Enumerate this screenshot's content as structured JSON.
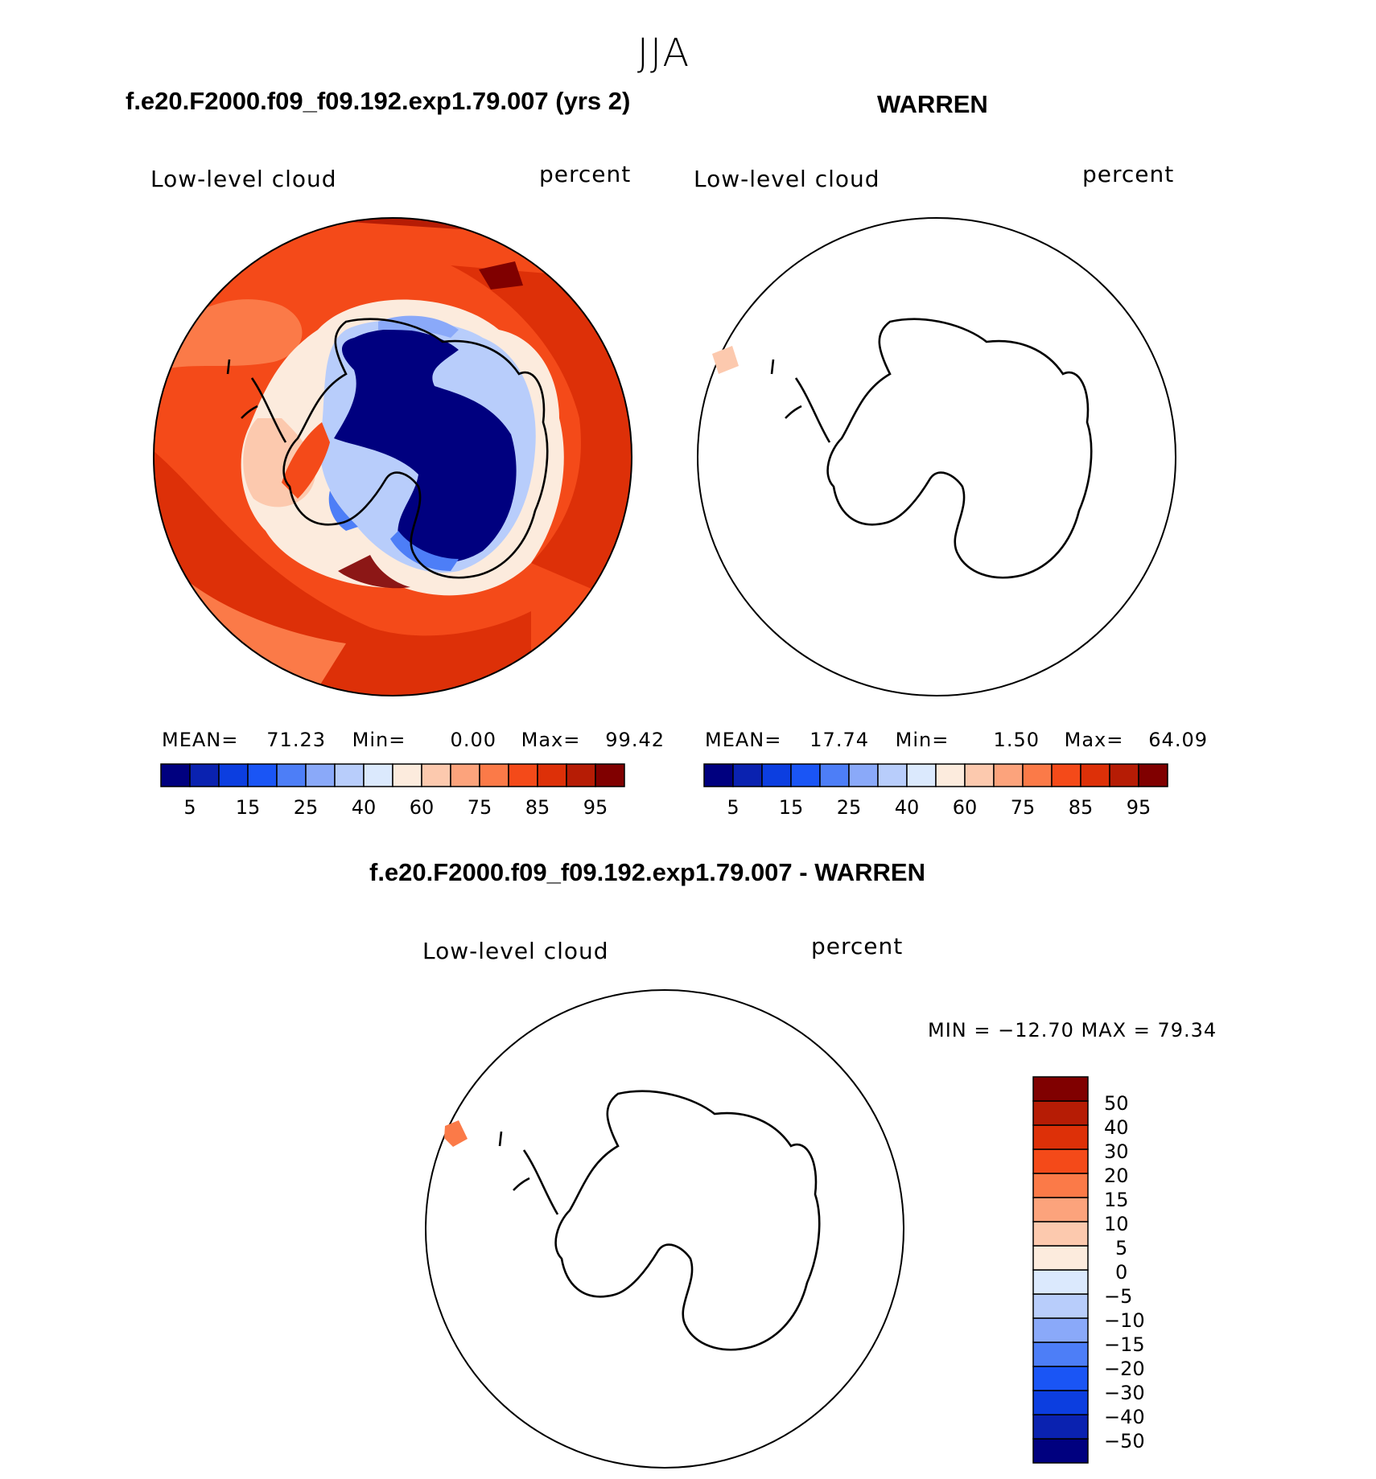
{
  "season_title": "JJA",
  "panels": {
    "model": {
      "case_title": "f.e20.F2000.f09_f09.192.exp1.79.007 (yrs 2)",
      "variable": "Low-level cloud",
      "units": "percent",
      "mean_label": "MEAN=",
      "mean": "71.23",
      "min_label": "Min=",
      "min": "0.00",
      "max_label": "Max=",
      "max": "99.42"
    },
    "obs": {
      "case_title": "WARREN",
      "variable": "Low-level cloud",
      "units": "percent",
      "mean_label": "MEAN=",
      "mean": "17.74",
      "min_label": "Min=",
      "min": "1.50",
      "max_label": "Max=",
      "max": "64.09"
    },
    "diff": {
      "case_title": "f.e20.F2000.f09_f09.192.exp1.79.007 - WARREN",
      "variable": "Low-level cloud",
      "units": "percent",
      "minmax_text": "MIN = −12.70 MAX =   79.34"
    }
  },
  "colorbar_horizontal": {
    "colors": [
      "#00007f",
      "#0a22b0",
      "#0c3ee0",
      "#1a55f5",
      "#4d7ef7",
      "#8aa9f9",
      "#b8cdfb",
      "#dbe9fd",
      "#fcebdd",
      "#fcc9ae",
      "#fca37c",
      "#fb7a48",
      "#f44a19",
      "#dd3008",
      "#b61c05",
      "#800000"
    ],
    "tick_labels": [
      "5",
      "15",
      "25",
      "40",
      "60",
      "75",
      "85",
      "95"
    ]
  },
  "colorbar_vertical": {
    "colors": [
      "#00007f",
      "#0a22b0",
      "#0c3ee0",
      "#1a55f5",
      "#4d7ef7",
      "#8aa9f9",
      "#b8cdfb",
      "#dbe9fd",
      "#fcebdd",
      "#fcc9ae",
      "#fca37c",
      "#fb7a48",
      "#f44a19",
      "#dd3008",
      "#b61c05",
      "#800000"
    ],
    "tick_labels": [
      "50",
      "40",
      "30",
      "20",
      "15",
      "10",
      "5",
      "0",
      "−5",
      "−10",
      "−15",
      "−20",
      "−30",
      "−40",
      "−50"
    ]
  }
}
